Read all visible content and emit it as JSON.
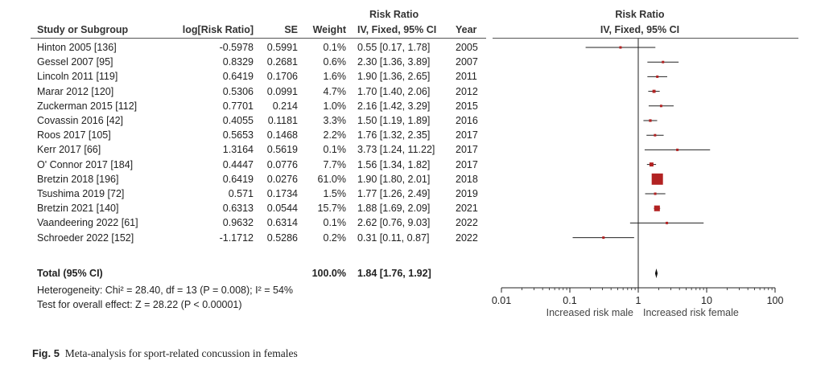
{
  "table": {
    "header_group_risk_ratio": "Risk Ratio",
    "plot_header_title": "Risk Ratio",
    "plot_header_method": "IV, Fixed, 95% CI",
    "columns": [
      "Study or Subgroup",
      "log[Risk Ratio]",
      "SE",
      "Weight",
      "IV, Fixed, 95% CI",
      "Year"
    ],
    "rows": [
      {
        "study": "Hinton 2005 [136]",
        "logrr": "-0.5978",
        "se": "0.5991",
        "weight": "0.1%",
        "ci": "0.55 [0.17, 1.78]",
        "year": "2005"
      },
      {
        "study": "Gessel 2007 [95]",
        "logrr": "0.8329",
        "se": "0.2681",
        "weight": "0.6%",
        "ci": "2.30 [1.36, 3.89]",
        "year": "2007"
      },
      {
        "study": "Lincoln 2011 [119]",
        "logrr": "0.6419",
        "se": "0.1706",
        "weight": "1.6%",
        "ci": "1.90 [1.36, 2.65]",
        "year": "2011"
      },
      {
        "study": "Marar 2012 [120]",
        "logrr": "0.5306",
        "se": "0.0991",
        "weight": "4.7%",
        "ci": "1.70 [1.40, 2.06]",
        "year": "2012"
      },
      {
        "study": "Zuckerman 2015 [112]",
        "logrr": "0.7701",
        "se": "0.214",
        "weight": "1.0%",
        "ci": "2.16 [1.42, 3.29]",
        "year": "2015"
      },
      {
        "study": "Covassin 2016 [42]",
        "logrr": "0.4055",
        "se": "0.1181",
        "weight": "3.3%",
        "ci": "1.50 [1.19, 1.89]",
        "year": "2016"
      },
      {
        "study": "Roos 2017 [105]",
        "logrr": "0.5653",
        "se": "0.1468",
        "weight": "2.2%",
        "ci": "1.76 [1.32, 2.35]",
        "year": "2017"
      },
      {
        "study": "Kerr 2017 [66]",
        "logrr": "1.3164",
        "se": "0.5619",
        "weight": "0.1%",
        "ci": "3.73 [1.24, 11.22]",
        "year": "2017"
      },
      {
        "study": "O' Connor 2017 [184]",
        "logrr": "0.4447",
        "se": "0.0776",
        "weight": "7.7%",
        "ci": "1.56 [1.34, 1.82]",
        "year": "2017"
      },
      {
        "study": "Bretzin 2018 [196]",
        "logrr": "0.6419",
        "se": "0.0276",
        "weight": "61.0%",
        "ci": "1.90 [1.80, 2.01]",
        "year": "2018"
      },
      {
        "study": "Tsushima 2019 [72]",
        "logrr": "0.571",
        "se": "0.1734",
        "weight": "1.5%",
        "ci": "1.77 [1.26, 2.49]",
        "year": "2019"
      },
      {
        "study": "Bretzin 2021 [140]",
        "logrr": "0.6313",
        "se": "0.0544",
        "weight": "15.7%",
        "ci": "1.88 [1.69, 2.09]",
        "year": "2021"
      },
      {
        "study": "Vaandeering 2022 [61]",
        "logrr": "0.9632",
        "se": "0.6314",
        "weight": "0.1%",
        "ci": "2.62 [0.76, 9.03]",
        "year": "2022"
      },
      {
        "study": "Schroeder 2022 [152]",
        "logrr": "-1.1712",
        "se": "0.5286",
        "weight": "0.2%",
        "ci": "0.31 [0.11, 0.87]",
        "year": "2022"
      }
    ],
    "total": {
      "label": "Total (95% CI)",
      "weight": "100.0%",
      "ci": "1.84 [1.76, 1.92]"
    },
    "heterogeneity": "Heterogeneity: Chi² = 28.40, df = 13 (P = 0.008); I² = 54%",
    "overall_effect": "Test for overall effect: Z = 28.22 (P < 0.00001)"
  },
  "chart_data": {
    "type": "forest",
    "title": "Risk Ratio",
    "subtitle": "IV, Fixed, 95% CI",
    "x_scale": "log",
    "xlim": [
      0.01,
      100
    ],
    "x_ticks": [
      "0.01",
      "0.1",
      "1",
      "10",
      "100"
    ],
    "x_tick_values": [
      0.01,
      0.1,
      1,
      10,
      100
    ],
    "left_label": "Increased risk male",
    "right_label": "Increased risk female",
    "colors": {
      "marker": "#b22222",
      "line": "#222222"
    },
    "studies": [
      {
        "rr": 0.55,
        "lo": 0.17,
        "hi": 1.78,
        "weight": 0.1
      },
      {
        "rr": 2.3,
        "lo": 1.36,
        "hi": 3.89,
        "weight": 0.6
      },
      {
        "rr": 1.9,
        "lo": 1.36,
        "hi": 2.65,
        "weight": 1.6
      },
      {
        "rr": 1.7,
        "lo": 1.4,
        "hi": 2.06,
        "weight": 4.7
      },
      {
        "rr": 2.16,
        "lo": 1.42,
        "hi": 3.29,
        "weight": 1.0
      },
      {
        "rr": 1.5,
        "lo": 1.19,
        "hi": 1.89,
        "weight": 3.3
      },
      {
        "rr": 1.76,
        "lo": 1.32,
        "hi": 2.35,
        "weight": 2.2
      },
      {
        "rr": 3.73,
        "lo": 1.24,
        "hi": 11.22,
        "weight": 0.1
      },
      {
        "rr": 1.56,
        "lo": 1.34,
        "hi": 1.82,
        "weight": 7.7
      },
      {
        "rr": 1.9,
        "lo": 1.8,
        "hi": 2.01,
        "weight": 61.0
      },
      {
        "rr": 1.77,
        "lo": 1.26,
        "hi": 2.49,
        "weight": 1.5
      },
      {
        "rr": 1.88,
        "lo": 1.69,
        "hi": 2.09,
        "weight": 15.7
      },
      {
        "rr": 2.62,
        "lo": 0.76,
        "hi": 9.03,
        "weight": 0.1
      },
      {
        "rr": 0.31,
        "lo": 0.11,
        "hi": 0.87,
        "weight": 0.2
      }
    ],
    "pooled": {
      "rr": 1.84,
      "lo": 1.76,
      "hi": 1.92
    }
  },
  "caption": {
    "label": "Fig. 5",
    "text": "Meta-analysis for sport-related concussion in females"
  }
}
